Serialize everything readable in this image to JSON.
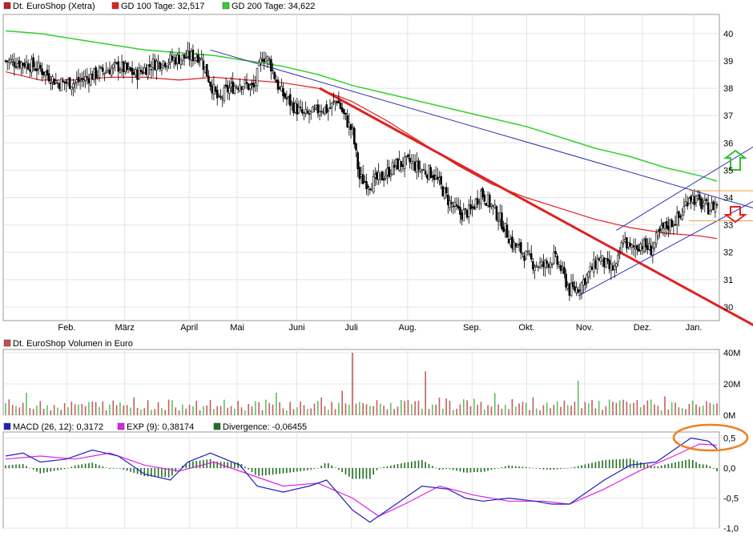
{
  "legend_main": [
    {
      "text": "Dt. EuroShop (Xetra)",
      "color": "#bf2020"
    },
    {
      "text": "GD 100 Tage: 32,517",
      "color": "#e02020"
    },
    {
      "text": "GD 200 Tage: 34,622",
      "color": "#30d030"
    }
  ],
  "legend_volume": {
    "text": "Dt. EuroShop Volumen in Euro",
    "color": "#c05050"
  },
  "legend_macd": [
    {
      "text": "MACD (26, 12): 0,3172",
      "color": "#2020c0"
    },
    {
      "text": "EXP (9): 0,38174",
      "color": "#e020e0"
    },
    {
      "text": "Divergence: -0,06455",
      "color": "#207020"
    }
  ],
  "chart_data": [
    {
      "type": "candlestick",
      "x_labels": [
        "Feb.",
        "März",
        "April",
        "Mai",
        "Juni",
        "Juli",
        "Aug.",
        "Sep.",
        "Okt.",
        "Nov.",
        "Dez.",
        "Jan."
      ],
      "y_ticks": [
        "30",
        "31",
        "32",
        "33",
        "34",
        "35",
        "36",
        "37",
        "38",
        "39",
        "40"
      ],
      "ylim": [
        29.5,
        40.7
      ],
      "grid": true,
      "price_path": [
        [
          0,
          39.0
        ],
        [
          12,
          38.9
        ],
        [
          20,
          38.7
        ],
        [
          30,
          38.2
        ],
        [
          40,
          38.2
        ],
        [
          55,
          38.6
        ],
        [
          65,
          38.8
        ],
        [
          75,
          38.5
        ],
        [
          85,
          38.9
        ],
        [
          100,
          39.1
        ],
        [
          112,
          39.2
        ],
        [
          118,
          38.2
        ],
        [
          123,
          37.5
        ],
        [
          127,
          37.9
        ],
        [
          135,
          38.2
        ],
        [
          143,
          38.0
        ],
        [
          148,
          39.2
        ],
        [
          152,
          39.0
        ],
        [
          158,
          37.9
        ],
        [
          165,
          37.4
        ],
        [
          172,
          37.0
        ],
        [
          178,
          37.1
        ],
        [
          182,
          37.3
        ],
        [
          186,
          37.2
        ],
        [
          191,
          37.6
        ],
        [
          195,
          37.0
        ],
        [
          200,
          36.4
        ],
        [
          204,
          34.7
        ],
        [
          210,
          34.5
        ],
        [
          218,
          34.8
        ],
        [
          225,
          35.2
        ],
        [
          233,
          35.3
        ],
        [
          240,
          35.0
        ],
        [
          246,
          34.9
        ],
        [
          250,
          34.5
        ],
        [
          256,
          33.8
        ],
        [
          262,
          33.4
        ],
        [
          268,
          33.5
        ],
        [
          274,
          34.2
        ],
        [
          280,
          33.7
        ],
        [
          286,
          33.1
        ],
        [
          292,
          32.3
        ],
        [
          298,
          32.0
        ],
        [
          304,
          31.6
        ],
        [
          310,
          31.5
        ],
        [
          316,
          31.8
        ],
        [
          320,
          31.4
        ],
        [
          325,
          30.6
        ],
        [
          330,
          30.7
        ],
        [
          336,
          31.2
        ],
        [
          342,
          31.8
        ],
        [
          348,
          31.4
        ],
        [
          352,
          31.4
        ],
        [
          356,
          32.5
        ],
        [
          360,
          32.1
        ],
        [
          366,
          32.3
        ],
        [
          372,
          32.1
        ],
        [
          378,
          32.8
        ],
        [
          384,
          33.1
        ],
        [
          389,
          33.3
        ],
        [
          394,
          34.1
        ],
        [
          398,
          33.9
        ],
        [
          402,
          33.7
        ],
        [
          406,
          33.6
        ],
        [
          410,
          33.8
        ]
      ],
      "sma_100": [
        [
          0,
          38.6
        ],
        [
          20,
          38.3
        ],
        [
          40,
          38.3
        ],
        [
          60,
          38.4
        ],
        [
          80,
          38.4
        ],
        [
          100,
          38.3
        ],
        [
          120,
          38.4
        ],
        [
          140,
          38.3
        ],
        [
          160,
          38.2
        ],
        [
          180,
          38.0
        ],
        [
          200,
          37.5
        ],
        [
          220,
          36.8
        ],
        [
          240,
          36.0
        ],
        [
          260,
          35.2
        ],
        [
          280,
          34.5
        ],
        [
          300,
          34.0
        ],
        [
          320,
          33.6
        ],
        [
          340,
          33.2
        ],
        [
          360,
          32.9
        ],
        [
          380,
          32.7
        ],
        [
          400,
          32.6
        ],
        [
          410,
          32.5
        ]
      ],
      "sma_200": [
        [
          0,
          40.1
        ],
        [
          20,
          40.0
        ],
        [
          40,
          39.8
        ],
        [
          60,
          39.6
        ],
        [
          80,
          39.4
        ],
        [
          100,
          39.3
        ],
        [
          120,
          39.2
        ],
        [
          140,
          39.0
        ],
        [
          160,
          38.8
        ],
        [
          180,
          38.5
        ],
        [
          200,
          38.1
        ],
        [
          220,
          37.8
        ],
        [
          240,
          37.5
        ],
        [
          260,
          37.2
        ],
        [
          280,
          36.9
        ],
        [
          300,
          36.6
        ],
        [
          320,
          36.2
        ],
        [
          340,
          35.8
        ],
        [
          360,
          35.5
        ],
        [
          380,
          35.1
        ],
        [
          400,
          34.8
        ],
        [
          410,
          34.6
        ]
      ],
      "support_lines": [
        {
          "name": "downtrend-red",
          "color": "#e02020",
          "width": 3,
          "points": [
            [
              181,
              38.0
            ],
            [
              432,
              29.3
            ]
          ]
        },
        {
          "name": "downtrend-blue",
          "color": "#3030a0",
          "width": 1,
          "points": [
            [
              118,
              39.4
            ],
            [
              432,
              33.6
            ]
          ]
        },
        {
          "name": "channel-upper",
          "color": "#3030c0",
          "width": 1,
          "points": [
            [
              352,
              32.8
            ],
            [
              432,
              35.9
            ]
          ]
        },
        {
          "name": "channel-lower",
          "color": "#3030c0",
          "width": 1,
          "points": [
            [
              330,
              30.4
            ],
            [
              432,
              33.9
            ]
          ]
        },
        {
          "name": "resistance-orange",
          "color": "#f0a040",
          "width": 1,
          "points": [
            [
              394,
              34.25
            ],
            [
              432,
              34.25
            ]
          ]
        },
        {
          "name": "support-orange",
          "color": "#f0a040",
          "width": 1,
          "points": [
            [
              394,
              33.15
            ],
            [
              432,
              33.15
            ]
          ]
        }
      ]
    },
    {
      "type": "bar",
      "name": "Volumen",
      "y_ticks": [
        "0M",
        "20M",
        "40M"
      ],
      "ylim": [
        0,
        40
      ]
    },
    {
      "type": "line",
      "name": "MACD",
      "y_ticks": [
        "0,5",
        "0,0",
        "-0,5",
        "-1,0"
      ],
      "ylim": [
        -1.0,
        0.6
      ],
      "macd_path": [
        [
          0,
          0.2
        ],
        [
          10,
          0.25
        ],
        [
          20,
          0.1
        ],
        [
          35,
          0.15
        ],
        [
          50,
          0.3
        ],
        [
          65,
          0.2
        ],
        [
          80,
          -0.1
        ],
        [
          95,
          -0.2
        ],
        [
          105,
          0.1
        ],
        [
          118,
          0.25
        ],
        [
          135,
          0.05
        ],
        [
          145,
          -0.3
        ],
        [
          160,
          -0.4
        ],
        [
          175,
          -0.3
        ],
        [
          185,
          -0.2
        ],
        [
          200,
          -0.7
        ],
        [
          210,
          -0.9
        ],
        [
          225,
          -0.6
        ],
        [
          240,
          -0.3
        ],
        [
          255,
          -0.35
        ],
        [
          265,
          -0.5
        ],
        [
          275,
          -0.55
        ],
        [
          290,
          -0.5
        ],
        [
          305,
          -0.55
        ],
        [
          315,
          -0.6
        ],
        [
          325,
          -0.6
        ],
        [
          335,
          -0.4
        ],
        [
          345,
          -0.2
        ],
        [
          360,
          0.05
        ],
        [
          375,
          0.1
        ],
        [
          385,
          0.3
        ],
        [
          395,
          0.5
        ],
        [
          405,
          0.45
        ],
        [
          410,
          0.32
        ]
      ],
      "signal_path": [
        [
          0,
          0.15
        ],
        [
          20,
          0.2
        ],
        [
          40,
          0.15
        ],
        [
          60,
          0.25
        ],
        [
          80,
          0.05
        ],
        [
          100,
          -0.05
        ],
        [
          120,
          0.1
        ],
        [
          140,
          -0.1
        ],
        [
          160,
          -0.3
        ],
        [
          180,
          -0.25
        ],
        [
          200,
          -0.5
        ],
        [
          215,
          -0.8
        ],
        [
          230,
          -0.6
        ],
        [
          250,
          -0.3
        ],
        [
          270,
          -0.45
        ],
        [
          290,
          -0.55
        ],
        [
          310,
          -0.55
        ],
        [
          325,
          -0.6
        ],
        [
          345,
          -0.35
        ],
        [
          365,
          -0.05
        ],
        [
          385,
          0.2
        ],
        [
          400,
          0.4
        ],
        [
          410,
          0.38
        ]
      ]
    }
  ]
}
